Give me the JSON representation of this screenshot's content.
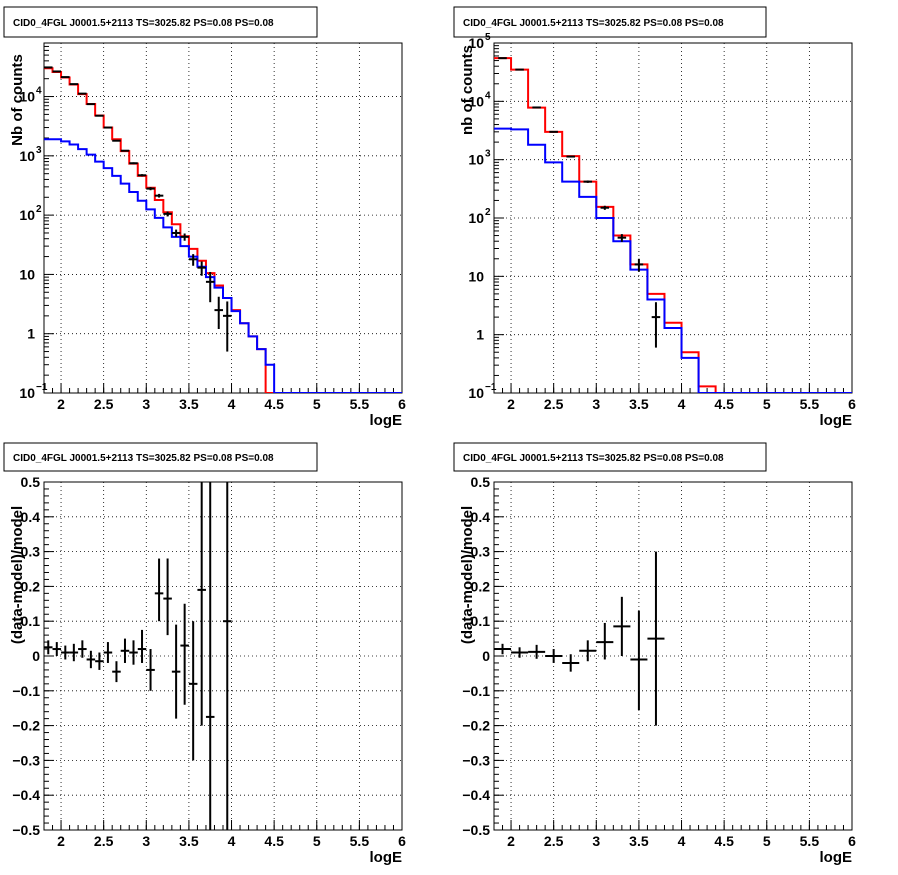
{
  "chart_data": [
    {
      "type": "line",
      "title": "CID0_4FGL J0001.5+2113 TS=3025.82 PS=0.08 PS=0.08",
      "xlabel": "logE",
      "ylabel": "Nb of counts",
      "xlim": [
        1.8,
        6
      ],
      "ylim": [
        0.1,
        80000
      ],
      "yscale": "log",
      "grid": true,
      "x_ticks": [
        "2",
        "2.5",
        "3",
        "3.5",
        "4",
        "4.5",
        "5",
        "5.5",
        "6"
      ],
      "y_ticks": [
        {
          "value": 0.1,
          "label": "10",
          "sup": "−1"
        },
        {
          "value": 1,
          "label": "1",
          "sup": ""
        },
        {
          "value": 10,
          "label": "10",
          "sup": ""
        },
        {
          "value": 100,
          "label": "10",
          "sup": "2"
        },
        {
          "value": 1000,
          "label": "10",
          "sup": "3"
        },
        {
          "value": 10000,
          "label": "10",
          "sup": "4"
        }
      ],
      "bin_edges": [
        1.8,
        1.9,
        2.0,
        2.1,
        2.2,
        2.3,
        2.4,
        2.5,
        2.6,
        2.7,
        2.8,
        2.9,
        3.0,
        3.1,
        3.2,
        3.3,
        3.4,
        3.5,
        3.6,
        3.7,
        3.8,
        3.9,
        4.0,
        4.1,
        4.2,
        4.3,
        4.4,
        4.5,
        4.6,
        4.7,
        4.8,
        4.9,
        5.0,
        5.1,
        5.2,
        5.3,
        5.4,
        5.5,
        5.6,
        5.7,
        5.8,
        5.9,
        6.0
      ],
      "series": [
        {
          "color": "#ff0000",
          "style": "hist",
          "values": [
            30000,
            26000,
            21000,
            16000,
            11000,
            7500,
            4800,
            3000,
            1900,
            1200,
            740,
            460,
            290,
            180,
            112,
            70,
            44,
            27,
            17,
            10.5,
            6.5,
            4.0,
            2.5,
            1.5,
            0.9,
            0.55,
            0.1,
            0.1,
            0.1,
            0.1,
            0.1,
            0.1,
            0.1,
            0.1,
            0.1,
            0.1,
            0.1,
            0.1,
            0.1,
            0.1,
            0.1,
            0.1
          ]
        },
        {
          "color": "#0000ff",
          "style": "hist",
          "values": [
            1900,
            1900,
            1750,
            1550,
            1300,
            1050,
            800,
            620,
            460,
            340,
            245,
            175,
            125,
            90,
            62,
            43,
            30,
            20,
            13.5,
            9.0,
            6.0,
            4.0,
            2.4,
            1.5,
            0.9,
            0.55,
            0.3,
            0.1,
            0.1,
            0.1,
            0.1,
            0.1,
            0.1,
            0.1,
            0.1,
            0.1,
            0.1,
            0.1,
            0.1,
            0.1,
            0.1,
            0.1
          ]
        },
        {
          "color": "#000000",
          "style": "points",
          "points": [
            {
              "x": 1.85,
              "y": 31000,
              "lo": 30800,
              "hi": 31200
            },
            {
              "x": 1.95,
              "y": 26500,
              "lo": 26300,
              "hi": 26700
            },
            {
              "x": 2.05,
              "y": 21300,
              "lo": 21100,
              "hi": 21500
            },
            {
              "x": 2.15,
              "y": 16200,
              "lo": 16000,
              "hi": 16400
            },
            {
              "x": 2.25,
              "y": 11200,
              "lo": 11050,
              "hi": 11350
            },
            {
              "x": 2.35,
              "y": 7450,
              "lo": 7350,
              "hi": 7550
            },
            {
              "x": 2.45,
              "y": 4750,
              "lo": 4680,
              "hi": 4820
            },
            {
              "x": 2.55,
              "y": 3000,
              "lo": 2950,
              "hi": 3050
            },
            {
              "x": 2.65,
              "y": 1800,
              "lo": 1760,
              "hi": 1840
            },
            {
              "x": 2.75,
              "y": 1220,
              "lo": 1185,
              "hi": 1255
            },
            {
              "x": 2.85,
              "y": 750,
              "lo": 723,
              "hi": 777
            },
            {
              "x": 2.95,
              "y": 470,
              "lo": 449,
              "hi": 491
            },
            {
              "x": 3.05,
              "y": 280,
              "lo": 263,
              "hi": 297
            },
            {
              "x": 3.15,
              "y": 213,
              "lo": 198,
              "hi": 228
            },
            {
              "x": 3.25,
              "y": 105,
              "lo": 95,
              "hi": 115
            },
            {
              "x": 3.35,
              "y": 50,
              "lo": 43,
              "hi": 57
            },
            {
              "x": 3.45,
              "y": 43,
              "lo": 37,
              "hi": 49
            },
            {
              "x": 3.55,
              "y": 18,
              "lo": 14,
              "hi": 22
            },
            {
              "x": 3.65,
              "y": 13,
              "lo": 9.5,
              "hi": 16.5
            },
            {
              "x": 3.75,
              "y": 7.5,
              "lo": 3.4,
              "hi": 11
            },
            {
              "x": 3.85,
              "y": 2.5,
              "lo": 1.2,
              "hi": 4.2
            },
            {
              "x": 3.95,
              "y": 2.0,
              "lo": 0.5,
              "hi": 3.5
            }
          ]
        }
      ]
    },
    {
      "type": "line",
      "title": "CID0_4FGL J0001.5+2113 TS=3025.82 PS=0.08 PS=0.08",
      "xlabel": "logE",
      "ylabel": "nb of counts",
      "xlim": [
        1.8,
        6
      ],
      "ylim": [
        0.1,
        100000
      ],
      "yscale": "log",
      "grid": true,
      "x_ticks": [
        "2",
        "2.5",
        "3",
        "3.5",
        "4",
        "4.5",
        "5",
        "5.5",
        "6"
      ],
      "y_ticks": [
        {
          "value": 0.1,
          "label": "10",
          "sup": "−1"
        },
        {
          "value": 1,
          "label": "1",
          "sup": ""
        },
        {
          "value": 10,
          "label": "10",
          "sup": ""
        },
        {
          "value": 100,
          "label": "10",
          "sup": "2"
        },
        {
          "value": 1000,
          "label": "10",
          "sup": "3"
        },
        {
          "value": 10000,
          "label": "10",
          "sup": "4"
        },
        {
          "value": 100000,
          "label": "10",
          "sup": "5"
        }
      ],
      "bin_edges": [
        1.8,
        2.0,
        2.2,
        2.4,
        2.6,
        2.8,
        3.0,
        3.2,
        3.4,
        3.6,
        3.8,
        4.0,
        4.2,
        4.4,
        4.6,
        4.8,
        5.0,
        5.2,
        5.4,
        5.6,
        5.8,
        6.0
      ],
      "series": [
        {
          "color": "#ff0000",
          "style": "hist",
          "values": [
            55000,
            35000,
            7800,
            3000,
            1150,
            420,
            155,
            50,
            16,
            5.0,
            1.6,
            0.5,
            0.13,
            0.1,
            0.1,
            0.1,
            0.1,
            0.1,
            0.1,
            0.1,
            0.1
          ]
        },
        {
          "color": "#0000ff",
          "style": "hist",
          "values": [
            3400,
            3300,
            1800,
            900,
            420,
            230,
            100,
            40,
            13,
            4.0,
            1.3,
            0.4,
            0.1,
            0.1,
            0.1,
            0.1,
            0.1,
            0.1,
            0.1,
            0.1,
            0.1
          ]
        },
        {
          "color": "#000000",
          "style": "points",
          "points": [
            {
              "x": 1.9,
              "y": 55000,
              "lo": 54500,
              "hi": 55500
            },
            {
              "x": 2.1,
              "y": 35000,
              "lo": 34700,
              "hi": 35300
            },
            {
              "x": 2.3,
              "y": 7850,
              "lo": 7750,
              "hi": 7950
            },
            {
              "x": 2.5,
              "y": 3000,
              "lo": 2950,
              "hi": 3050
            },
            {
              "x": 2.7,
              "y": 1130,
              "lo": 1100,
              "hi": 1160
            },
            {
              "x": 2.9,
              "y": 420,
              "lo": 400,
              "hi": 440
            },
            {
              "x": 3.1,
              "y": 150,
              "lo": 138,
              "hi": 162
            },
            {
              "x": 3.3,
              "y": 46,
              "lo": 39,
              "hi": 53
            },
            {
              "x": 3.5,
              "y": 16,
              "lo": 12,
              "hi": 20
            },
            {
              "x": 3.7,
              "y": 2.0,
              "lo": 0.6,
              "hi": 3.6
            }
          ]
        }
      ]
    },
    {
      "type": "scatter",
      "title": "CID0_4FGL J0001.5+2113 TS=3025.82 PS=0.08 PS=0.08",
      "xlabel": "logE",
      "ylabel": "(data-model)/model",
      "xlim": [
        1.8,
        6
      ],
      "ylim": [
        -0.5,
        0.5
      ],
      "grid": true,
      "x_ticks": [
        "2",
        "2.5",
        "3",
        "3.5",
        "4",
        "4.5",
        "5",
        "5.5",
        "6"
      ],
      "y_ticks": [
        "−0.5",
        "−0.4",
        "−0.3",
        "−0.2",
        "−0.1",
        "0",
        "0.1",
        "0.2",
        "0.3",
        "0.4",
        "0.5"
      ],
      "series": [
        {
          "color": "#000000",
          "xerr": 0.05,
          "points": [
            {
              "x": 1.85,
              "y": 0.025,
              "lo": 0.005,
              "hi": 0.045
            },
            {
              "x": 1.95,
              "y": 0.02,
              "lo": 0.0,
              "hi": 0.04
            },
            {
              "x": 2.05,
              "y": 0.01,
              "lo": -0.01,
              "hi": 0.03
            },
            {
              "x": 2.15,
              "y": 0.01,
              "lo": -0.015,
              "hi": 0.035
            },
            {
              "x": 2.25,
              "y": 0.02,
              "lo": -0.005,
              "hi": 0.045
            },
            {
              "x": 2.35,
              "y": -0.01,
              "lo": -0.035,
              "hi": 0.015
            },
            {
              "x": 2.45,
              "y": -0.015,
              "lo": -0.04,
              "hi": 0.01
            },
            {
              "x": 2.55,
              "y": 0.01,
              "lo": -0.02,
              "hi": 0.04
            },
            {
              "x": 2.65,
              "y": -0.045,
              "lo": -0.075,
              "hi": -0.015
            },
            {
              "x": 2.75,
              "y": 0.015,
              "lo": -0.02,
              "hi": 0.05
            },
            {
              "x": 2.85,
              "y": 0.01,
              "lo": -0.025,
              "hi": 0.045
            },
            {
              "x": 2.95,
              "y": 0.02,
              "lo": -0.02,
              "hi": 0.075
            },
            {
              "x": 3.05,
              "y": -0.04,
              "lo": -0.1,
              "hi": 0.02
            },
            {
              "x": 3.15,
              "y": 0.18,
              "lo": 0.1,
              "hi": 0.28
            },
            {
              "x": 3.25,
              "y": 0.165,
              "lo": 0.06,
              "hi": 0.28
            },
            {
              "x": 3.35,
              "y": -0.045,
              "lo": -0.18,
              "hi": 0.09
            },
            {
              "x": 3.45,
              "y": 0.03,
              "lo": -0.14,
              "hi": 0.15
            },
            {
              "x": 3.55,
              "y": -0.08,
              "lo": -0.3,
              "hi": 0.1
            },
            {
              "x": 3.65,
              "y": 0.19,
              "lo": -0.2,
              "hi": 0.5
            },
            {
              "x": 3.75,
              "y": -0.175,
              "lo": -0.5,
              "hi": 0.5
            },
            {
              "x": 3.95,
              "y": 0.1,
              "lo": -0.5,
              "hi": 0.5
            }
          ]
        }
      ]
    },
    {
      "type": "scatter",
      "title": "CID0_4FGL J0001.5+2113 TS=3025.82 PS=0.08 PS=0.08",
      "xlabel": "logE",
      "ylabel": "(data-model)/model",
      "xlim": [
        1.8,
        6
      ],
      "ylim": [
        -0.5,
        0.5
      ],
      "grid": true,
      "x_ticks": [
        "2",
        "2.5",
        "3",
        "3.5",
        "4",
        "4.5",
        "5",
        "5.5",
        "6"
      ],
      "y_ticks": [
        "−0.5",
        "−0.4",
        "−0.3",
        "−0.2",
        "−0.1",
        "0",
        "0.1",
        "0.2",
        "0.3",
        "0.4",
        "0.5"
      ],
      "series": [
        {
          "color": "#000000",
          "xerr": 0.1,
          "points": [
            {
              "x": 1.9,
              "y": 0.02,
              "lo": 0.005,
              "hi": 0.035
            },
            {
              "x": 2.1,
              "y": 0.01,
              "lo": -0.005,
              "hi": 0.025
            },
            {
              "x": 2.3,
              "y": 0.012,
              "lo": -0.008,
              "hi": 0.032
            },
            {
              "x": 2.5,
              "y": 0.0,
              "lo": -0.02,
              "hi": 0.02
            },
            {
              "x": 2.7,
              "y": -0.02,
              "lo": -0.045,
              "hi": 0.005
            },
            {
              "x": 2.9,
              "y": 0.015,
              "lo": -0.015,
              "hi": 0.045
            },
            {
              "x": 3.1,
              "y": 0.04,
              "lo": -0.01,
              "hi": 0.095
            },
            {
              "x": 3.3,
              "y": 0.085,
              "lo": 0.0,
              "hi": 0.17
            },
            {
              "x": 3.5,
              "y": -0.01,
              "lo": -0.155,
              "hi": 0.13
            },
            {
              "x": 3.7,
              "y": 0.05,
              "lo": -0.2,
              "hi": 0.3
            }
          ]
        }
      ]
    }
  ]
}
